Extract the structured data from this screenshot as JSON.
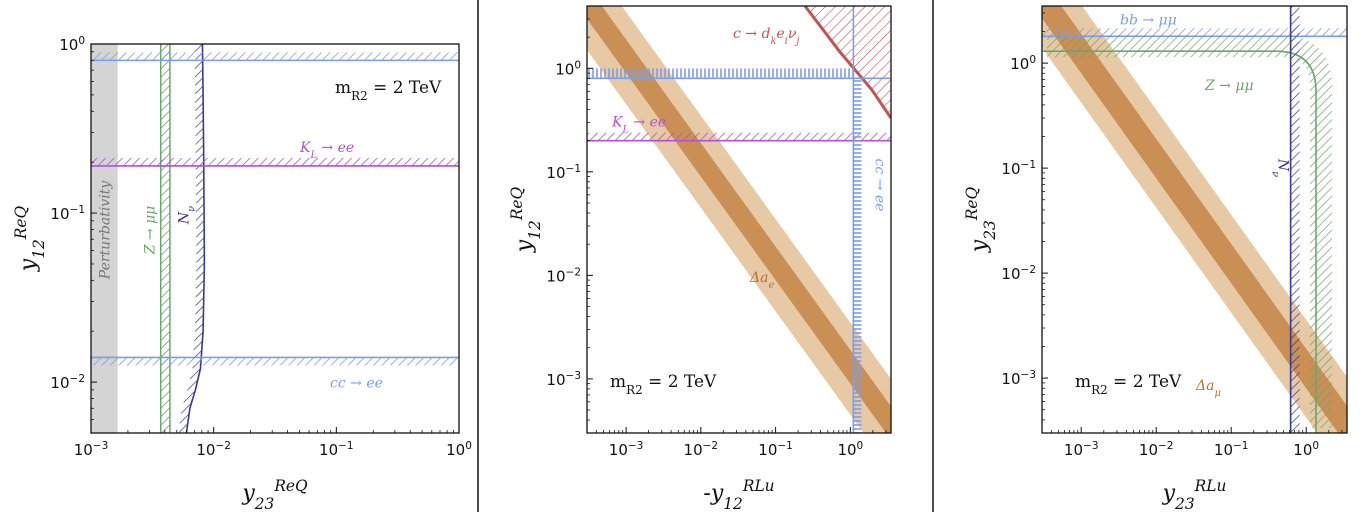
{
  "colors": {
    "blue": "#7b9ee6",
    "green": "#6fa36f",
    "purple": "#b44fd6",
    "navy": "#3a3a8c",
    "orange_light": "#e8c9a6",
    "orange_dark": "#c98f55",
    "red": "#c05555",
    "gray": "#d4d4d4"
  },
  "chart_data": [
    {
      "type": "line",
      "log_x": true,
      "log_y": true,
      "xlim": [
        0.001,
        1
      ],
      "ylim": [
        0.005,
        1
      ],
      "xlabel_html": [
        "y",
        "23",
        "ReQ"
      ],
      "ylabel_html": [
        "y",
        "12",
        "ReQ"
      ],
      "xticks": [
        {
          "v": 0.001,
          "label": "10",
          "exp": "−3"
        },
        {
          "v": 0.01,
          "label": "10",
          "exp": "−2"
        },
        {
          "v": 0.1,
          "label": "10",
          "exp": "−1"
        },
        {
          "v": 1,
          "label": "10",
          "exp": "0"
        }
      ],
      "yticks": [
        {
          "v": 0.01,
          "label": "10",
          "exp": "−2"
        },
        {
          "v": 0.1,
          "label": "10",
          "exp": "−1"
        },
        {
          "v": 1,
          "label": "10",
          "exp": "0"
        }
      ],
      "mass_label": "m",
      "mass_sub": "R",
      "mass_sub2": "2",
      "mass_value": " = 2 TeV",
      "regions": [
        {
          "label": "Perturbativity",
          "kind": "vband",
          "x": [
            0.001,
            0.00165
          ],
          "color": "gray"
        },
        {
          "label": "Z → μμ",
          "kind": "vband_hatch",
          "x": [
            0.0037,
            0.0044
          ],
          "color": "green"
        },
        {
          "label": "N",
          "label_sub": "ν",
          "kind": "curve",
          "x": [
            0.0081,
            0.0082,
            0.0083,
            0.0084,
            0.0082,
            0.0078,
            0.0071,
            0.0064,
            0.006
          ],
          "y": [
            1,
            0.5,
            0.2,
            0.05,
            0.02,
            0.012,
            0.009,
            0.007,
            0.005
          ],
          "color": "navy"
        },
        {
          "label": "K",
          "label_sub": "L",
          "label_rest": " → ee",
          "kind": "hline_hatch",
          "y": 0.19,
          "color": "purple"
        },
        {
          "label": "",
          "kind": "hline_hatch",
          "y": 0.8,
          "color": "blue",
          "dir": "up"
        },
        {
          "label": "cc → ee",
          "kind": "hline_hatch",
          "y": 0.014,
          "color": "blue",
          "dir": "down"
        }
      ]
    },
    {
      "type": "line",
      "log_x": true,
      "log_y": true,
      "xlim": [
        0.0003,
        3.5
      ],
      "ylim": [
        0.0003,
        4
      ],
      "xlabel_html": [
        "-y",
        "12",
        "RLu"
      ],
      "ylabel_html": [
        "y",
        "12",
        "ReQ"
      ],
      "xticks": [
        {
          "v": 0.001,
          "label": "10",
          "exp": "−3"
        },
        {
          "v": 0.01,
          "label": "10",
          "exp": "−2"
        },
        {
          "v": 0.1,
          "label": "10",
          "exp": "−1"
        },
        {
          "v": 1,
          "label": "10",
          "exp": "0"
        }
      ],
      "yticks": [
        {
          "v": 0.001,
          "label": "10",
          "exp": "−3"
        },
        {
          "v": 0.01,
          "label": "10",
          "exp": "−2"
        },
        {
          "v": 0.1,
          "label": "10",
          "exp": "−1"
        },
        {
          "v": 1,
          "label": "10",
          "exp": "0"
        }
      ],
      "mass_label": "m",
      "mass_sub": "R",
      "mass_sub2": "2",
      "mass_value": " = 2 TeV",
      "regions": [
        {
          "label": "Δa",
          "label_sub": "e",
          "kind": "diag_band",
          "color": "orange"
        },
        {
          "label": "c → d",
          "label_sub": "k",
          "label_rest": "e",
          "label_sub2": "i",
          "label_rest2": "ν",
          "label_sub3": "j",
          "kind": "corner_hatch",
          "color": "red"
        },
        {
          "label": "K",
          "label_sub": "L",
          "label_rest": " → ee",
          "kind": "hline_hatch",
          "y": 0.2,
          "color": "purple"
        },
        {
          "label": "",
          "kind": "hline_dense",
          "y": 0.8,
          "color": "blue"
        },
        {
          "label": "cc → ee",
          "kind": "vline_dense",
          "x": 1.1,
          "color": "blue"
        }
      ]
    },
    {
      "type": "line",
      "log_x": true,
      "log_y": true,
      "xlim": [
        0.0003,
        3.5
      ],
      "ylim": [
        0.0003,
        3.5
      ],
      "xlabel_html": [
        "y",
        "23",
        "RLu"
      ],
      "ylabel_html": [
        "y",
        "23",
        "ReQ"
      ],
      "xticks": [
        {
          "v": 0.001,
          "label": "10",
          "exp": "−3"
        },
        {
          "v": 0.01,
          "label": "10",
          "exp": "−2"
        },
        {
          "v": 0.1,
          "label": "10",
          "exp": "−1"
        },
        {
          "v": 1,
          "label": "10",
          "exp": "0"
        }
      ],
      "yticks": [
        {
          "v": 0.001,
          "label": "10",
          "exp": "−3"
        },
        {
          "v": 0.01,
          "label": "10",
          "exp": "−2"
        },
        {
          "v": 0.1,
          "label": "10",
          "exp": "−1"
        },
        {
          "v": 1,
          "label": "10",
          "exp": "0"
        }
      ],
      "mass_label": "m",
      "mass_sub": "R",
      "mass_sub2": "2",
      "mass_value": " = 2 TeV",
      "regions": [
        {
          "label": "Δa",
          "label_sub": "μ",
          "kind": "diag_band",
          "color": "orange"
        },
        {
          "label": "bb → μμ",
          "kind": "hline_hatch",
          "y": 1.8,
          "color": "blue"
        },
        {
          "label": "Z → μμ",
          "kind": "corner_curve",
          "color": "green"
        },
        {
          "label": "N",
          "label_sub": "ν",
          "kind": "vline_hatch",
          "x": 0.62,
          "color": "navy"
        }
      ]
    }
  ]
}
